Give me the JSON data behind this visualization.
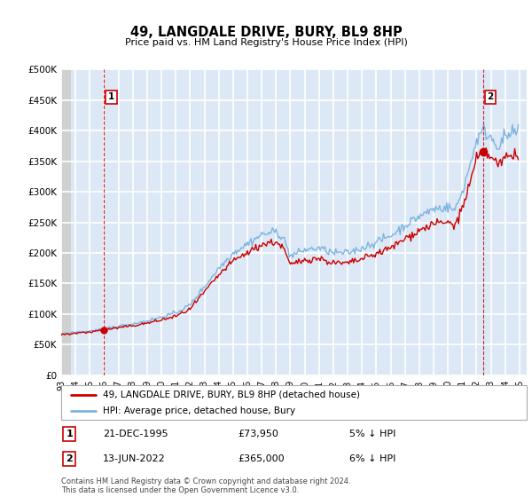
{
  "title": "49, LANGDALE DRIVE, BURY, BL9 8HP",
  "subtitle": "Price paid vs. HM Land Registry's House Price Index (HPI)",
  "ylabel_ticks": [
    "£0",
    "£50K",
    "£100K",
    "£150K",
    "£200K",
    "£250K",
    "£300K",
    "£350K",
    "£400K",
    "£450K",
    "£500K"
  ],
  "ytick_vals": [
    0,
    50000,
    100000,
    150000,
    200000,
    250000,
    300000,
    350000,
    400000,
    450000,
    500000
  ],
  "ylim": [
    0,
    500000
  ],
  "xlim_start": 1993.0,
  "xlim_end": 2025.5,
  "xtick_years": [
    1993,
    1994,
    1995,
    1996,
    1997,
    1998,
    1999,
    2000,
    2001,
    2002,
    2003,
    2004,
    2005,
    2006,
    2007,
    2008,
    2009,
    2010,
    2011,
    2012,
    2013,
    2014,
    2015,
    2016,
    2017,
    2018,
    2019,
    2020,
    2021,
    2022,
    2023,
    2024,
    2025
  ],
  "sale1_x": 1995.97,
  "sale1_y": 73950,
  "sale2_x": 2022.45,
  "sale2_y": 365000,
  "hpi_color": "#7eb4e0",
  "sale_color": "#cc0000",
  "bg_color": "#dce8f5",
  "hatch_area_color": "#c8c8c8",
  "grid_color": "#ffffff",
  "legend_label_sale": "49, LANGDALE DRIVE, BURY, BL9 8HP (detached house)",
  "legend_label_hpi": "HPI: Average price, detached house, Bury",
  "sale1_date": "21-DEC-1995",
  "sale1_price": "£73,950",
  "sale1_pct": "5% ↓ HPI",
  "sale2_date": "13-JUN-2022",
  "sale2_price": "£365,000",
  "sale2_pct": "6% ↓ HPI",
  "footnote": "Contains HM Land Registry data © Crown copyright and database right 2024.\nThis data is licensed under the Open Government Licence v3.0."
}
